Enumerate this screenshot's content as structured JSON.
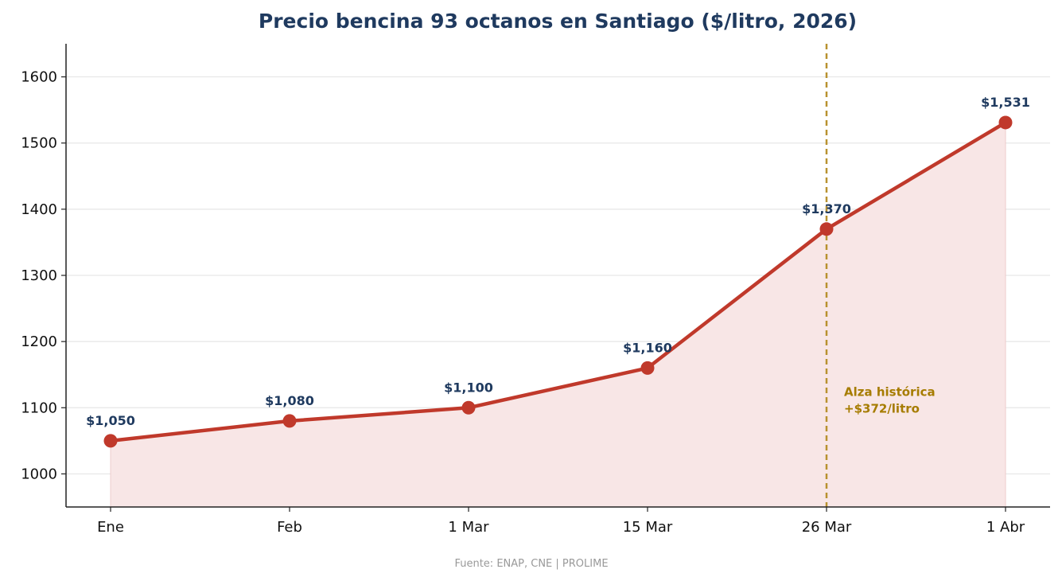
{
  "chart_data": {
    "type": "line",
    "title": "Precio bencina 93 octanos en Santiago ($/litro, 2026)",
    "xlabel": "",
    "ylabel": "",
    "categories": [
      "Ene",
      "Feb",
      "1 Mar",
      "15 Mar",
      "26 Mar",
      "1 Abr"
    ],
    "values": [
      1050,
      1080,
      1100,
      1160,
      1370,
      1531
    ],
    "data_labels": [
      "$1,050",
      "$1,080",
      "$1,100",
      "$1,160",
      "$1,370",
      "$1,531"
    ],
    "ylim": [
      950,
      1650
    ],
    "yticks": [
      1000,
      1100,
      1200,
      1300,
      1400,
      1500,
      1600
    ],
    "grid": "horizontal",
    "area_fill": true,
    "vline": {
      "category": "26 Mar",
      "style": "dashed"
    },
    "annotation": {
      "lines": [
        "Alza histórica",
        "+$372/litro"
      ]
    },
    "colors": {
      "line": "#c0392b",
      "fill": "#f8e6e6",
      "marker": "#c0392b",
      "title": "#1f3a5f",
      "data_label": "#1f3a5f",
      "vline": "#b8912f",
      "annotation": "#a67c00",
      "grid": "#e6e6e6",
      "source": "#999999"
    }
  },
  "source": "Fuente: ENAP, CNE  |  PROLIME"
}
